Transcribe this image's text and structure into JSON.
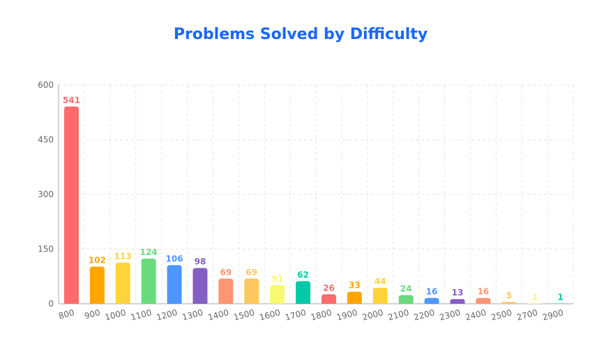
{
  "chart_data": {
    "type": "bar",
    "title": "Problems Solved by Difficulty",
    "xlabel": "",
    "ylabel": "",
    "categories": [
      "800",
      "900",
      "1000",
      "1100",
      "1200",
      "1300",
      "1400",
      "1500",
      "1600",
      "1700",
      "1800",
      "1900",
      "2000",
      "2100",
      "2200",
      "2300",
      "2400",
      "2500",
      "2700",
      "2900"
    ],
    "values": [
      541,
      102,
      113,
      124,
      106,
      98,
      69,
      69,
      51,
      62,
      26,
      33,
      44,
      24,
      16,
      13,
      16,
      5,
      1,
      1
    ],
    "colors": [
      "#ff6b6b",
      "#ffa502",
      "#ffd43b",
      "#69db7c",
      "#4d96ff",
      "#845ec2",
      "#ff9671",
      "#ffc75f",
      "#f9f871",
      "#00c9a7",
      "#ff6b6b",
      "#ffa502",
      "#ffd43b",
      "#69db7c",
      "#4d96ff",
      "#845ec2",
      "#ff9671",
      "#ffc75f",
      "#f9f871",
      "#00c9a7"
    ],
    "yticks": [
      0,
      150,
      300,
      450,
      600
    ],
    "ylim": [
      0,
      600
    ],
    "grid": true,
    "legend": "none",
    "title_color": "#1a66ff"
  }
}
